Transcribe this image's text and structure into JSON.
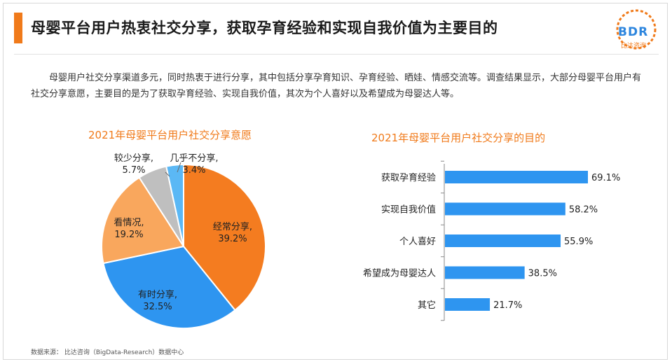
{
  "header": {
    "title": "母婴平台用户热衷社交分享，获取孕育经验和实现自我价值为主要目的",
    "logo_text": "BDR",
    "logo_sub": "比达咨询",
    "accent_color": "#f07a1a"
  },
  "intro": "母婴用户社交分享渠道多元，同时热衷于进行分享，其中包括分享孕育知识、孕育经验、晒娃、情感交流等。调查结果显示，大部分母婴平台用户有社交分享意愿，主要目的是为了获取孕育经验、实现自我价值，其次为个人喜好以及希望成为母婴达人等。",
  "chart_data": [
    {
      "type": "pie",
      "title": "2021年母婴平台用户社交分享意愿",
      "slices": [
        {
          "label": "经常分享,",
          "value_label": "39.2%",
          "value": 39.2,
          "color": "#f47c20"
        },
        {
          "label": "有时分享,",
          "value_label": "32.5%",
          "value": 32.5,
          "color": "#2e95f0"
        },
        {
          "label": "看情况,",
          "value_label": "19.2%",
          "value": 19.2,
          "color": "#f9a75d"
        },
        {
          "label": "较少分享,",
          "value_label": "5.7%",
          "value": 5.7,
          "color": "#bfbfbf"
        },
        {
          "label": "几乎不分享,",
          "value_label": "3.4%",
          "value": 3.4,
          "color": "#5bb8f5"
        }
      ]
    },
    {
      "type": "bar",
      "orientation": "horizontal",
      "title": "2021年母婴平台用户社交分享的目的",
      "categories": [
        "获取孕育经验",
        "实现自我价值",
        "个人喜好",
        "希望成为母婴达人",
        "其它"
      ],
      "values": [
        69.1,
        58.2,
        55.9,
        38.5,
        21.7
      ],
      "value_labels": [
        "69.1%",
        "58.2%",
        "55.9%",
        "38.5%",
        "21.7%"
      ],
      "xlim": [
        0,
        100
      ],
      "color": "#2e95f0"
    }
  ],
  "footer": {
    "source": "数据来源： 比达咨询（BigData-Research）数据中心"
  }
}
